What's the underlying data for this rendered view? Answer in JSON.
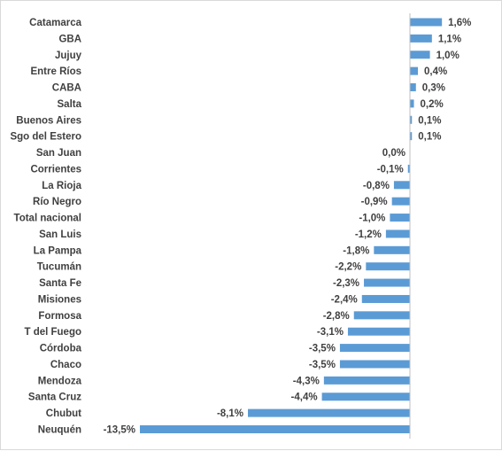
{
  "chart_data": {
    "type": "bar",
    "orientation": "horizontal",
    "title": "",
    "xlabel": "",
    "ylabel": "",
    "grid": false,
    "legend": "none",
    "bar_color": "#5b9bd5",
    "axis_color": "#bfbfbf",
    "xlim": [
      -13.5,
      1.6
    ],
    "categories": [
      "Catamarca",
      "GBA",
      "Jujuy",
      "Entre Ríos",
      "CABA",
      "Salta",
      "Buenos Aires",
      "Sgo del Estero",
      "San Juan",
      "Corrientes",
      "La Rioja",
      "Río Negro",
      "Total nacional",
      "San Luis",
      "La Pampa",
      "Tucumán",
      "Santa Fe",
      "Misiones",
      "Formosa",
      "T del Fuego",
      "Córdoba",
      "Chaco",
      "Mendoza",
      "Santa Cruz",
      "Chubut",
      "Neuquén"
    ],
    "values": [
      1.6,
      1.1,
      1.0,
      0.4,
      0.3,
      0.2,
      0.1,
      0.1,
      0.0,
      -0.1,
      -0.8,
      -0.9,
      -1.0,
      -1.2,
      -1.8,
      -2.2,
      -2.3,
      -2.4,
      -2.8,
      -3.1,
      -3.5,
      -3.5,
      -4.3,
      -4.4,
      -8.1,
      -13.5
    ],
    "value_labels": [
      "1,6%",
      "1,1%",
      "1,0%",
      "0,4%",
      "0,3%",
      "0,2%",
      "0,1%",
      "0,1%",
      "0,0%",
      "-0,1%",
      "-0,8%",
      "-0,9%",
      "-1,0%",
      "-1,2%",
      "-1,8%",
      "-2,2%",
      "-2,3%",
      "-2,4%",
      "-2,8%",
      "-3,1%",
      "-3,5%",
      "-3,5%",
      "-4,3%",
      "-4,4%",
      "-8,1%",
      "-13,5%"
    ]
  }
}
